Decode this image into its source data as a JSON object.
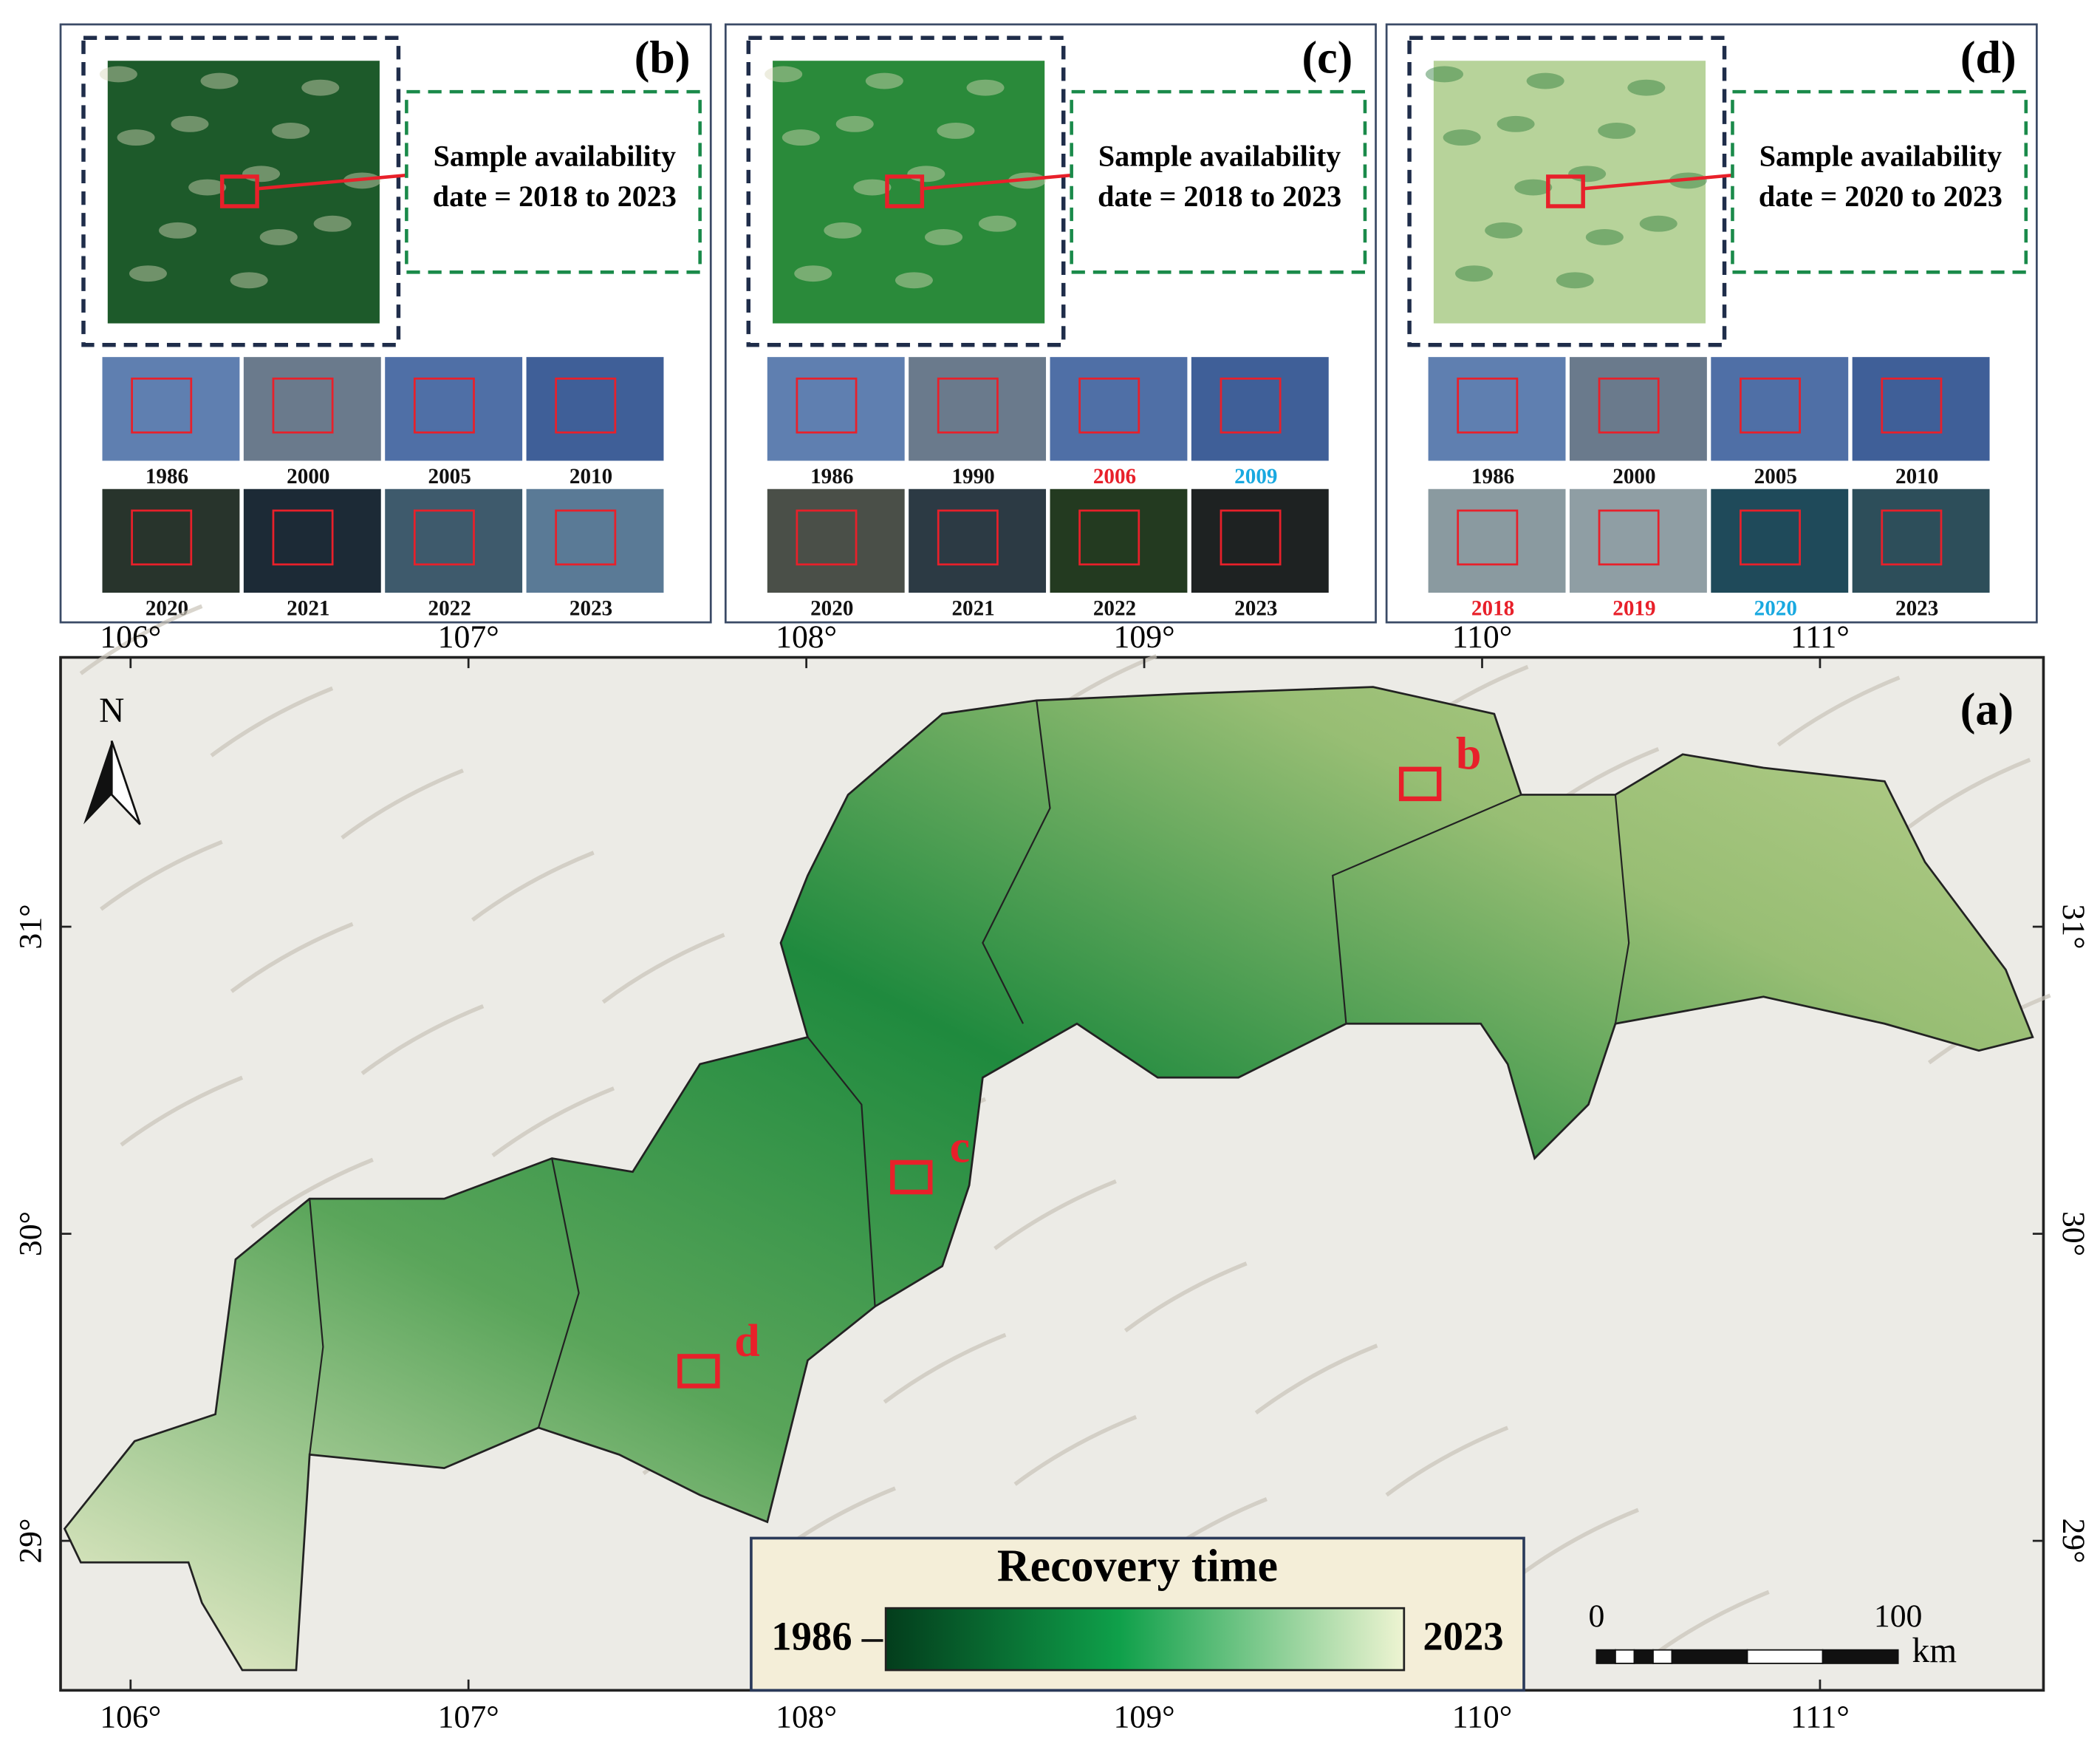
{
  "panels": [
    {
      "label": "(b)",
      "note": [
        "Sample availability",
        "date = 2018 to 2023"
      ],
      "years": [
        {
          "year": "1986"
        },
        {
          "year": "2000"
        },
        {
          "year": "2005"
        },
        {
          "year": "2010"
        },
        {
          "year": "2020"
        },
        {
          "year": "2021"
        },
        {
          "year": "2022"
        },
        {
          "year": "2023"
        }
      ]
    },
    {
      "label": "(c)",
      "note": [
        "Sample availability",
        "date = 2018 to 2023"
      ],
      "years": [
        {
          "year": "1986"
        },
        {
          "year": "1990"
        },
        {
          "year": "2006",
          "color": "#e8202a"
        },
        {
          "year": "2009",
          "color": "#19a9e0"
        },
        {
          "year": "2020"
        },
        {
          "year": "2021"
        },
        {
          "year": "2022"
        },
        {
          "year": "2023"
        }
      ]
    },
    {
      "label": "(d)",
      "note": [
        "Sample availability",
        "date = 2020 to 2023"
      ],
      "years": [
        {
          "year": "1986"
        },
        {
          "year": "2000"
        },
        {
          "year": "2005"
        },
        {
          "year": "2010"
        },
        {
          "year": "2018",
          "color": "#e8202a"
        },
        {
          "year": "2019",
          "color": "#e8202a"
        },
        {
          "year": "2020",
          "color": "#19a9e0"
        },
        {
          "year": "2023"
        }
      ]
    }
  ],
  "map": {
    "label": "(a)",
    "north": "N",
    "lon_ticks": [
      "106°",
      "107°",
      "108°",
      "109°",
      "110°",
      "111°"
    ],
    "lat_ticks": [
      "31°",
      "30°",
      "29°"
    ],
    "sites": [
      "b",
      "c",
      "d"
    ],
    "legend": {
      "title": "Recovery time",
      "min": "1986",
      "max": "2023"
    },
    "scale": {
      "labels": [
        "0",
        "100"
      ],
      "unit": "km"
    }
  }
}
